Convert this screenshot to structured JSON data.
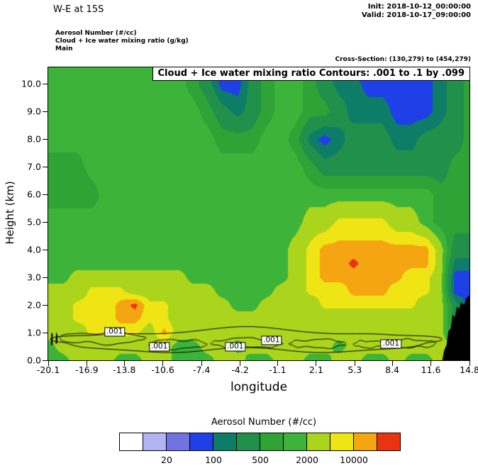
{
  "header": {
    "title": "W-E at 15S",
    "init": "Init: 2018-10-12_00:00:00",
    "valid": "Valid: 2018-10-17_09:00:00"
  },
  "meta": {
    "line1": "Aerosol Number  (#/cc)",
    "line2": "Cloud + Ice water mixing ratio  (g/kg)",
    "line3": "Main",
    "cross_section": "Cross-Section: (130,279) to (454,279)"
  },
  "colorbar": {
    "title": "Aerosol Number  (#/cc)",
    "tick_labels": [
      "20",
      "100",
      "500",
      "2000",
      "10000"
    ],
    "boundary_indices": [
      2,
      4,
      6,
      8,
      10
    ]
  },
  "chart_data": {
    "type": "heatmap",
    "title": "Cloud + Ice water mixing ratio Contours: .001 to .1 by .099",
    "xlabel": "longitude",
    "ylabel": "Height (km)",
    "units": "#/cc",
    "xlim": [
      -20.1,
      14.8
    ],
    "ylim": [
      0,
      10.6
    ],
    "xticks": {
      "values": [
        -20.1,
        -16.9,
        -13.8,
        -10.6,
        -7.4,
        -4.2,
        -1.1,
        2.1,
        5.3,
        8.4,
        11.6,
        14.8
      ],
      "labels": [
        "-20.1",
        "-16.9",
        "-13.8",
        "-10.6",
        "-7.4",
        "-4.2",
        "-1.1",
        "2.1",
        "5.3",
        "8.4",
        "11.6",
        "14.8"
      ]
    },
    "yticks": {
      "values": [
        0,
        1,
        2,
        3,
        4,
        5,
        6,
        7,
        8,
        9,
        10
      ],
      "labels": [
        "0.0",
        "1.0",
        "2.0",
        "3.0",
        "4.0",
        "5.0",
        "6.0",
        "7.0",
        "8.0",
        "9.0",
        "10.0"
      ]
    },
    "levels": [
      10,
      20,
      50,
      100,
      200,
      500,
      1000,
      2000,
      5000,
      10000,
      20000
    ],
    "palette": [
      "#ffffff",
      "#b3b3f2",
      "#7272e2",
      "#1e40e6",
      "#0e7d68",
      "#20904a",
      "#2fa336",
      "#3db33a",
      "#abd51c",
      "#f0e514",
      "#f5a511",
      "#ea3311"
    ],
    "grid_lon": [
      -20.1,
      -18.9,
      -17.7,
      -16.5,
      -15.3,
      -14.1,
      -12.9,
      -11.7,
      -10.5,
      -9.3,
      -8.1,
      -6.9,
      -5.7,
      -4.4,
      -3.2,
      -2.0,
      -0.8,
      0.4,
      1.6,
      2.8,
      4.0,
      5.2,
      6.4,
      7.6,
      8.8,
      10.0,
      11.2,
      12.4,
      13.6,
      14.8
    ],
    "grid_km": [
      0,
      0.5,
      1,
      1.5,
      2,
      2.5,
      3,
      3.5,
      4,
      5,
      6,
      7,
      8,
      9,
      10,
      10.6
    ],
    "values": [
      [
        1400,
        1400,
        3000,
        3000,
        3000,
        1400,
        1400,
        3000,
        3000,
        1400,
        1400,
        1400,
        3000,
        3000,
        1400,
        1400,
        3000,
        3000,
        1400,
        1400,
        3000,
        3000,
        1400,
        1400,
        3000,
        1400,
        1400,
        3000,
        1400,
        1400
      ],
      [
        1400,
        3000,
        3000,
        3000,
        3000,
        3000,
        3000,
        3000,
        3000,
        1400,
        1400,
        3000,
        3000,
        1400,
        3000,
        3000,
        3000,
        3000,
        3000,
        3000,
        1400,
        3000,
        3000,
        3000,
        3000,
        3000,
        3000,
        3000,
        3000,
        1400
      ],
      [
        3000,
        3000,
        3000,
        6000,
        6000,
        6000,
        6000,
        3000,
        13000,
        3000,
        3000,
        3000,
        3000,
        3000,
        3000,
        3000,
        3000,
        3000,
        3000,
        3000,
        3000,
        3000,
        3000,
        3000,
        3000,
        3000,
        3000,
        3000,
        300,
        70
      ],
      [
        3000,
        3000,
        6000,
        6000,
        6000,
        13000,
        13000,
        6000,
        6000,
        3000,
        3000,
        3000,
        3000,
        3000,
        3000,
        3000,
        3000,
        3000,
        3000,
        3000,
        3000,
        3000,
        3000,
        3000,
        3000,
        3000,
        3000,
        3000,
        300,
        70
      ],
      [
        3000,
        3000,
        6000,
        6000,
        6000,
        13000,
        25000,
        6000,
        6000,
        3000,
        3000,
        3000,
        3000,
        1400,
        1400,
        3000,
        3000,
        3000,
        3000,
        6000,
        6000,
        6000,
        6000,
        6000,
        6000,
        6000,
        3000,
        3000,
        300,
        70
      ],
      [
        3000,
        3000,
        3000,
        6000,
        6000,
        6000,
        3000,
        3000,
        3000,
        3000,
        3000,
        3000,
        1400,
        1400,
        1400,
        1400,
        3000,
        3000,
        6000,
        6000,
        6000,
        13000,
        13000,
        13000,
        6000,
        6000,
        6000,
        3000,
        70,
        70
      ],
      [
        1400,
        1400,
        3000,
        3000,
        3000,
        3000,
        3000,
        3000,
        3000,
        3000,
        1400,
        1400,
        1400,
        1400,
        1400,
        1400,
        1400,
        3000,
        6000,
        13000,
        13000,
        13000,
        13000,
        13000,
        13000,
        6000,
        6000,
        3000,
        70,
        70
      ],
      [
        1400,
        1400,
        1400,
        1400,
        1400,
        1400,
        1400,
        1400,
        1400,
        1400,
        1400,
        1400,
        1400,
        1400,
        1400,
        1400,
        1400,
        3000,
        6000,
        13000,
        13000,
        25000,
        13000,
        13000,
        13000,
        13000,
        13000,
        3000,
        150,
        150
      ],
      [
        1400,
        1400,
        1400,
        1400,
        1400,
        1400,
        1400,
        1400,
        1400,
        1400,
        1400,
        1400,
        1400,
        1400,
        1400,
        1400,
        1400,
        3000,
        6000,
        13000,
        13000,
        13000,
        13000,
        13000,
        13000,
        13000,
        13000,
        3000,
        300,
        300
      ],
      [
        1400,
        1400,
        1400,
        1400,
        1400,
        1400,
        1400,
        1400,
        1400,
        1400,
        1400,
        1400,
        1400,
        1400,
        1400,
        1400,
        1400,
        1400,
        3000,
        3000,
        6000,
        6000,
        6000,
        6000,
        3000,
        3000,
        1400,
        700,
        700,
        700
      ],
      [
        700,
        700,
        700,
        700,
        1400,
        1400,
        1400,
        1400,
        1400,
        1400,
        1400,
        1400,
        1400,
        1400,
        1400,
        1400,
        1400,
        1400,
        1400,
        1400,
        1400,
        1400,
        1400,
        1400,
        1400,
        1400,
        1400,
        700,
        700,
        700
      ],
      [
        700,
        700,
        700,
        1400,
        1400,
        1400,
        1400,
        1400,
        1400,
        1400,
        1400,
        1400,
        1400,
        1400,
        1400,
        1400,
        1400,
        1400,
        700,
        300,
        300,
        300,
        300,
        300,
        300,
        300,
        300,
        300,
        700,
        700
      ],
      [
        1400,
        1400,
        1400,
        1400,
        1400,
        1400,
        1400,
        1400,
        1400,
        1400,
        1400,
        1400,
        700,
        700,
        700,
        1400,
        1400,
        700,
        150,
        70,
        150,
        300,
        300,
        300,
        150,
        150,
        300,
        300,
        300,
        700
      ],
      [
        1400,
        1400,
        1400,
        1400,
        1400,
        1400,
        1400,
        1400,
        1400,
        1400,
        1400,
        700,
        300,
        150,
        300,
        700,
        1400,
        1400,
        700,
        700,
        300,
        150,
        150,
        150,
        70,
        70,
        70,
        150,
        300,
        700
      ],
      [
        1400,
        1400,
        1400,
        1400,
        1400,
        1400,
        1400,
        1400,
        1400,
        1400,
        700,
        300,
        70,
        70,
        300,
        700,
        1400,
        1400,
        700,
        300,
        150,
        150,
        70,
        70,
        70,
        70,
        70,
        150,
        300,
        700
      ],
      [
        1400,
        1400,
        1400,
        1400,
        1400,
        1400,
        1400,
        1400,
        1400,
        1400,
        700,
        300,
        70,
        35,
        300,
        700,
        1400,
        1400,
        700,
        300,
        150,
        70,
        35,
        70,
        70,
        70,
        70,
        150,
        300,
        300
      ]
    ],
    "terrain": [
      [
        [
          12.55,
          0
        ],
        [
          12.7,
          0.35
        ],
        [
          12.9,
          0.55
        ],
        [
          13.05,
          1.05
        ],
        [
          13.25,
          1.15
        ],
        [
          13.4,
          1.65
        ],
        [
          13.6,
          1.55
        ],
        [
          13.75,
          1.95
        ],
        [
          13.95,
          1.85
        ],
        [
          14.1,
          2.1
        ],
        [
          14.35,
          2.0
        ],
        [
          14.55,
          2.25
        ],
        [
          14.8,
          2.35
        ],
        [
          14.8,
          0
        ]
      ],
      [
        [
          -19.88,
          0.55
        ],
        [
          -19.84,
          1.0
        ],
        [
          -19.72,
          0.95
        ],
        [
          -19.74,
          0.55
        ]
      ],
      [
        [
          -19.5,
          0.6
        ],
        [
          -19.44,
          1.02
        ],
        [
          -19.32,
          0.9
        ],
        [
          -19.36,
          0.6
        ]
      ]
    ],
    "cloud_contours": [
      {
        "x0": -19.7,
        "x1": 12.3,
        "yc": 0.7,
        "amp": 0.38
      },
      {
        "x0": -19.2,
        "x1": -12.1,
        "yc": 0.8,
        "amp": 0.2
      },
      {
        "x0": -11.8,
        "x1": -7.0,
        "yc": 0.58,
        "amp": 0.16
      },
      {
        "x0": -6.6,
        "x1": -0.7,
        "yc": 0.62,
        "amp": 0.17
      },
      {
        "x0": -0.1,
        "x1": 4.6,
        "yc": 0.6,
        "amp": 0.15
      },
      {
        "x0": 5.2,
        "x1": 7.7,
        "yc": 0.58,
        "amp": 0.12
      },
      {
        "x0": 8.2,
        "x1": 12.0,
        "yc": 0.6,
        "amp": 0.14
      }
    ],
    "contour_labels": [
      {
        "text": ".001",
        "lon": -14.6,
        "km": 1.02
      },
      {
        "text": ".001",
        "lon": -10.9,
        "km": 0.5
      },
      {
        "text": ".001",
        "lon": -4.6,
        "km": 0.5
      },
      {
        "text": ".001",
        "lon": -1.6,
        "km": 0.72
      },
      {
        "text": ".001",
        "lon": 8.3,
        "km": 0.58
      }
    ]
  }
}
